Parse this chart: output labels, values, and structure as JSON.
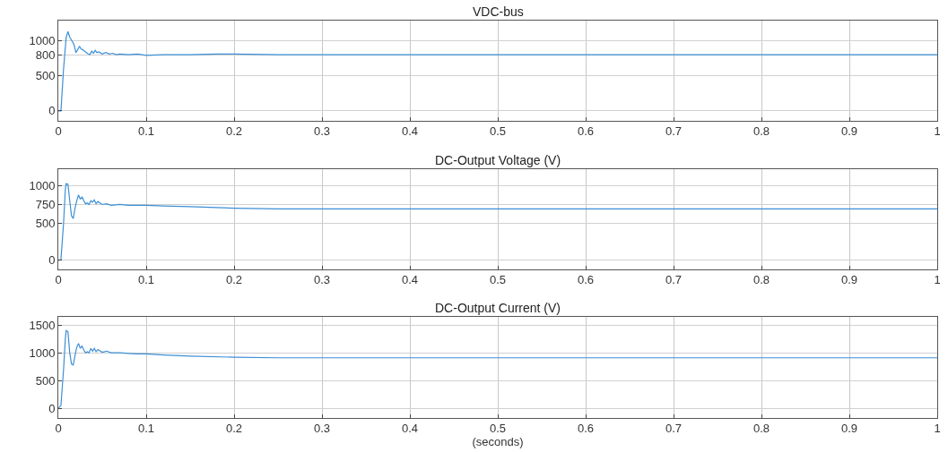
{
  "chart_data": [
    {
      "type": "line",
      "title": "VDC-bus",
      "xlim": [
        0,
        1
      ],
      "xticks": [
        0,
        0.1,
        0.2,
        0.3,
        0.4,
        0.5,
        0.6,
        0.7,
        0.8,
        0.9,
        1
      ],
      "ylim": [
        -140,
        1290
      ],
      "yticks": [
        0,
        500,
        800,
        1000
      ],
      "grid": true,
      "series": [
        {
          "color": "#3d8fd6",
          "x": [
            0,
            0.003,
            0.006,
            0.009,
            0.011,
            0.013,
            0.016,
            0.018,
            0.02,
            0.022,
            0.024,
            0.026,
            0.028,
            0.03,
            0.032,
            0.034,
            0.036,
            0.038,
            0.04,
            0.042,
            0.044,
            0.046,
            0.05,
            0.054,
            0.058,
            0.062,
            0.066,
            0.07,
            0.08,
            0.09,
            0.1,
            0.12,
            0.15,
            0.18,
            0.2,
            0.25,
            0.3,
            0.4,
            0.5,
            0.6,
            0.7,
            0.8,
            0.9,
            1.0
          ],
          "values": [
            0,
            0,
            600,
            1050,
            1130,
            1050,
            990,
            940,
            830,
            870,
            920,
            880,
            870,
            850,
            830,
            810,
            800,
            850,
            820,
            860,
            830,
            840,
            810,
            830,
            810,
            820,
            800,
            810,
            800,
            810,
            790,
            800,
            800,
            810,
            810,
            800,
            800,
            800,
            800,
            800,
            800,
            800,
            800,
            800
          ]
        }
      ]
    },
    {
      "type": "line",
      "title": "DC-Output Voltage (V)",
      "xlim": [
        0,
        1
      ],
      "xticks": [
        0,
        0.1,
        0.2,
        0.3,
        0.4,
        0.5,
        0.6,
        0.7,
        0.8,
        0.9,
        1
      ],
      "ylim": [
        -120,
        1230
      ],
      "yticks": [
        0,
        500,
        750,
        1000
      ],
      "grid": true,
      "series": [
        {
          "color": "#3d8fd6",
          "x": [
            0,
            0.003,
            0.006,
            0.008,
            0.009,
            0.011,
            0.013,
            0.015,
            0.017,
            0.019,
            0.021,
            0.023,
            0.025,
            0.027,
            0.029,
            0.031,
            0.033,
            0.035,
            0.037,
            0.039,
            0.041,
            0.043,
            0.045,
            0.05,
            0.055,
            0.06,
            0.07,
            0.08,
            0.09,
            0.1,
            0.12,
            0.15,
            0.2,
            0.25,
            0.3,
            0.4,
            0.5,
            0.6,
            0.7,
            0.8,
            0.9,
            1.0
          ],
          "values": [
            0,
            10,
            500,
            950,
            1030,
            1020,
            800,
            600,
            560,
            700,
            800,
            880,
            820,
            850,
            800,
            760,
            770,
            750,
            800,
            780,
            810,
            760,
            790,
            750,
            760,
            740,
            750,
            740,
            740,
            740,
            730,
            720,
            700,
            690,
            690,
            690,
            690,
            690,
            690,
            690,
            690,
            690
          ]
        }
      ]
    },
    {
      "type": "line",
      "title": "DC-Output Current (V)",
      "xlabel": "(seconds)",
      "xlim": [
        0,
        1
      ],
      "xticks": [
        0,
        0.1,
        0.2,
        0.3,
        0.4,
        0.5,
        0.6,
        0.7,
        0.8,
        0.9,
        1
      ],
      "ylim": [
        -170,
        1640
      ],
      "yticks": [
        0,
        500,
        1000,
        1500
      ],
      "grid": true,
      "series": [
        {
          "color": "#3d8fd6",
          "x": [
            0,
            0.003,
            0.006,
            0.008,
            0.009,
            0.011,
            0.013,
            0.015,
            0.017,
            0.019,
            0.021,
            0.023,
            0.025,
            0.027,
            0.029,
            0.031,
            0.033,
            0.035,
            0.037,
            0.039,
            0.041,
            0.043,
            0.045,
            0.05,
            0.055,
            0.06,
            0.07,
            0.08,
            0.09,
            0.1,
            0.12,
            0.15,
            0.2,
            0.25,
            0.3,
            0.4,
            0.5,
            0.6,
            0.7,
            0.8,
            0.9,
            1.0
          ],
          "values": [
            0,
            50,
            700,
            1250,
            1400,
            1380,
            1000,
            800,
            780,
            950,
            1100,
            1170,
            1080,
            1120,
            1050,
            1000,
            1020,
            1000,
            1080,
            1030,
            1080,
            1020,
            1060,
            1010,
            1030,
            1000,
            1000,
            990,
            980,
            980,
            960,
            940,
            920,
            910,
            910,
            910,
            910,
            910,
            910,
            910,
            910,
            910
          ]
        }
      ]
    }
  ]
}
